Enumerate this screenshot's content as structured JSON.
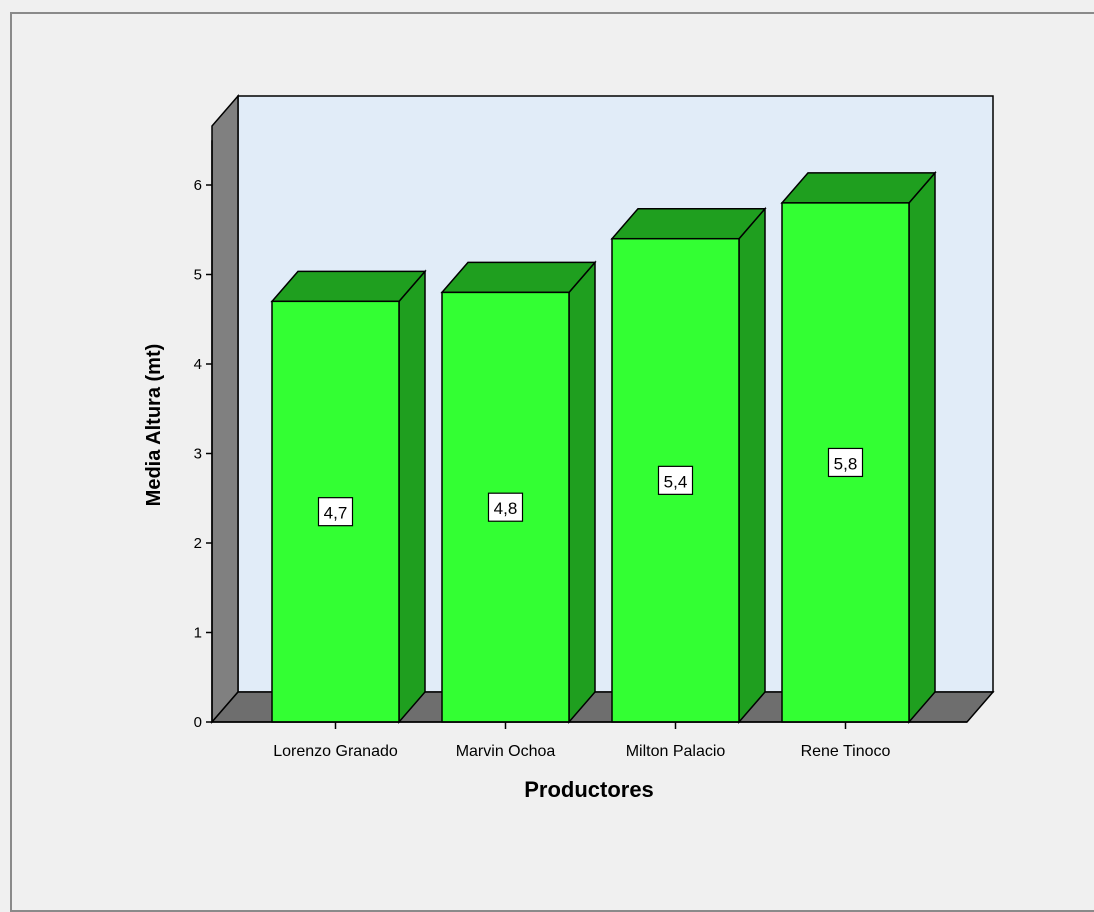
{
  "chart_data": {
    "type": "bar",
    "title": "",
    "xlabel": "Productores",
    "ylabel": "Media Altura (mt)",
    "categories": [
      "Lorenzo Granado",
      "Marvin Ochoa",
      "Milton Palacio",
      "Rene Tinoco"
    ],
    "values": [
      4.7,
      4.8,
      5.4,
      5.8
    ],
    "value_labels": [
      "4,7",
      "4,8",
      "5,4",
      "5,8"
    ],
    "ylim": [
      0,
      6.5
    ],
    "yticks": [
      "0",
      "1",
      "2",
      "3",
      "4",
      "5",
      "6"
    ],
    "grid": false,
    "style": "3d",
    "colors": {
      "bar_front": "#33ff33",
      "bar_top": "#1f9f1f",
      "bar_side": "#1f9f1f",
      "wall_back": "#e1ecf8",
      "wall_side": "#808080",
      "floor": "#6e6e6e",
      "background": "#f0f0f0"
    }
  }
}
